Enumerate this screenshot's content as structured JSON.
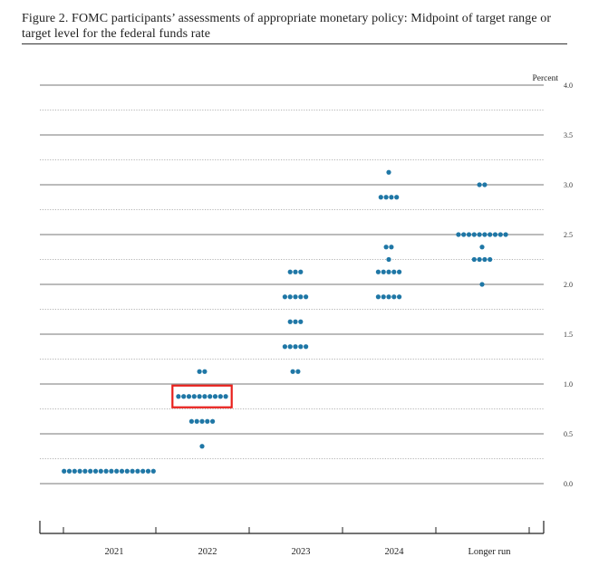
{
  "figure": {
    "title": "Figure 2.  FOMC participants’ assessments of appropriate monetary policy:  Midpoint of target range or target level for the federal funds rate"
  },
  "colors": {
    "dot": "#1f77a6",
    "highlight": "#e8201c",
    "rule": "#555555"
  },
  "chart_data": {
    "type": "scatter",
    "ylabel": "Percent",
    "ylim": [
      0.0,
      4.0
    ],
    "y_ticks": [
      "0.0",
      "0.5",
      "1.0",
      "1.5",
      "2.0",
      "2.5",
      "3.0",
      "3.5",
      "4.0"
    ],
    "categories": [
      "2021",
      "2022",
      "2023",
      "2024",
      "Longer run"
    ],
    "series": [
      {
        "category": "2021",
        "points": [
          {
            "y": 0.125,
            "count": 18
          }
        ]
      },
      {
        "category": "2022",
        "points": [
          {
            "y": 0.375,
            "count": 1
          },
          {
            "y": 0.625,
            "count": 5
          },
          {
            "y": 0.875,
            "count": 10
          },
          {
            "y": 1.125,
            "count": 2
          }
        ]
      },
      {
        "category": "2023",
        "points": [
          {
            "y": 1.125,
            "count": 2
          },
          {
            "y": 1.375,
            "count": 5
          },
          {
            "y": 1.625,
            "count": 3
          },
          {
            "y": 1.875,
            "count": 5
          },
          {
            "y": 2.125,
            "count": 3
          }
        ]
      },
      {
        "category": "2024",
        "points": [
          {
            "y": 1.875,
            "count": 5
          },
          {
            "y": 2.125,
            "count": 5
          },
          {
            "y": 2.25,
            "count": 1
          },
          {
            "y": 2.375,
            "count": 2
          },
          {
            "y": 2.875,
            "count": 4
          },
          {
            "y": 3.125,
            "count": 1
          }
        ]
      },
      {
        "category": "Longer run",
        "points": [
          {
            "y": 2.0,
            "count": 1
          },
          {
            "y": 2.25,
            "count": 4
          },
          {
            "y": 2.375,
            "count": 1
          },
          {
            "y": 2.5,
            "count": 10
          },
          {
            "y": 3.0,
            "count": 2
          }
        ]
      }
    ],
    "highlight": {
      "category": "2022",
      "y": 0.875
    }
  }
}
